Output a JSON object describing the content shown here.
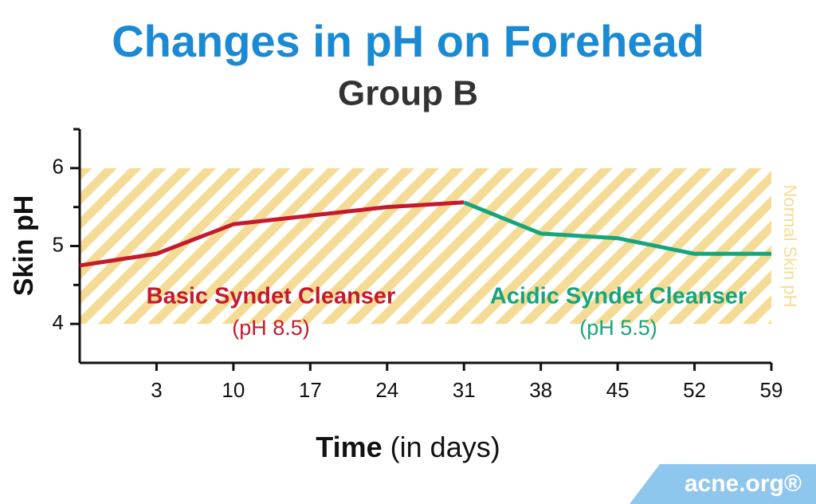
{
  "chart_data": {
    "type": "line",
    "title": "Changes in pH on Forehead",
    "subtitle": "Group B",
    "ylabel": "Skin pH",
    "xlabel": {
      "main": "Time",
      "note": "(in days)"
    },
    "xlim": [
      -4,
      59
    ],
    "xticks": [
      3,
      10,
      17,
      24,
      31,
      38,
      45,
      52,
      59
    ],
    "ylim": [
      3.5,
      6.5
    ],
    "yticks": [
      4,
      5,
      6
    ],
    "yminorticks": [
      4.5,
      5.5,
      6.5
    ],
    "band": {
      "range": [
        4,
        6
      ],
      "label": "Normal Skin pH",
      "color": "#f5dc96"
    },
    "series": [
      {
        "name": "Basic Syndet Cleanser",
        "note": "(pH 8.5)",
        "color": "#c51a2e",
        "x": [
          -4,
          3,
          10,
          17,
          24,
          31
        ],
        "values": [
          4.75,
          4.9,
          5.28,
          5.39,
          5.5,
          5.56
        ]
      },
      {
        "name": "Acidic Syndet Cleanser",
        "note": "(pH 5.5)",
        "color": "#17a57c",
        "x": [
          31,
          38,
          45,
          52,
          59
        ],
        "values": [
          5.56,
          5.16,
          5.1,
          4.9,
          4.9
        ]
      }
    ],
    "brand": "acne.org®"
  }
}
